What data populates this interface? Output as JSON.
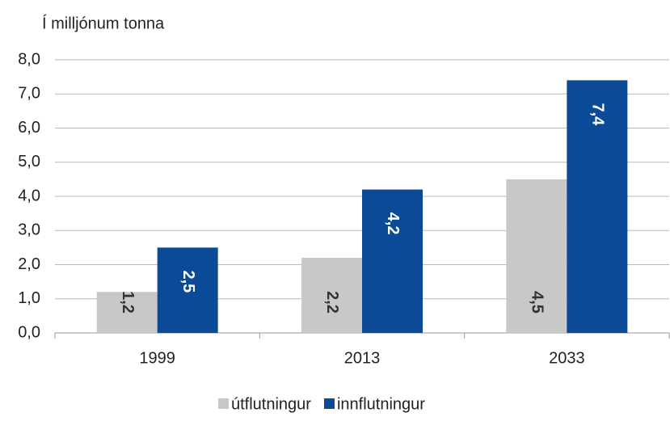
{
  "chart_data": {
    "type": "bar",
    "title": "Í milljónum tonna",
    "categories": [
      "1999",
      "2013",
      "2033"
    ],
    "series": [
      {
        "name": "útflutningur",
        "color": "#c8c8c8",
        "label_color": "#333333",
        "values": [
          1.2,
          2.2,
          4.5
        ],
        "value_labels": [
          "1,2",
          "2,2",
          "4,5"
        ]
      },
      {
        "name": "innflutningur",
        "color": "#0b4a97",
        "label_color": "#ffffff",
        "values": [
          2.5,
          4.2,
          7.4
        ],
        "value_labels": [
          "2,5",
          "4,2",
          "7,4"
        ]
      }
    ],
    "ylim": [
      0,
      8
    ],
    "yticks": [
      {
        "value": 0,
        "label": "0,0"
      },
      {
        "value": 1,
        "label": "1,0"
      },
      {
        "value": 2,
        "label": "2,0"
      },
      {
        "value": 3,
        "label": "3,0"
      },
      {
        "value": 4,
        "label": "4,0"
      },
      {
        "value": 5,
        "label": "5,0"
      },
      {
        "value": 6,
        "label": "6,0"
      },
      {
        "value": 7,
        "label": "7,0"
      },
      {
        "value": 8,
        "label": "8,0"
      }
    ],
    "grid": true,
    "legend": "bottom"
  }
}
